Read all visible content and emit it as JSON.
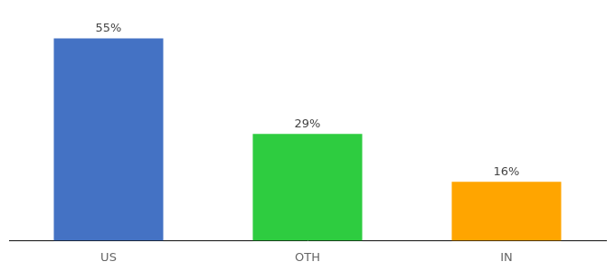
{
  "chart_data": {
    "type": "bar",
    "categories": [
      "US",
      "OTH",
      "IN"
    ],
    "values": [
      55,
      29,
      16
    ],
    "value_labels": [
      "55%",
      "29%",
      "16%"
    ],
    "colors": [
      "#4472C4",
      "#2ECC40",
      "#FFA500"
    ],
    "ylim": [
      0,
      63
    ],
    "grid": false,
    "data_labels": true,
    "tick_labels": "x"
  }
}
